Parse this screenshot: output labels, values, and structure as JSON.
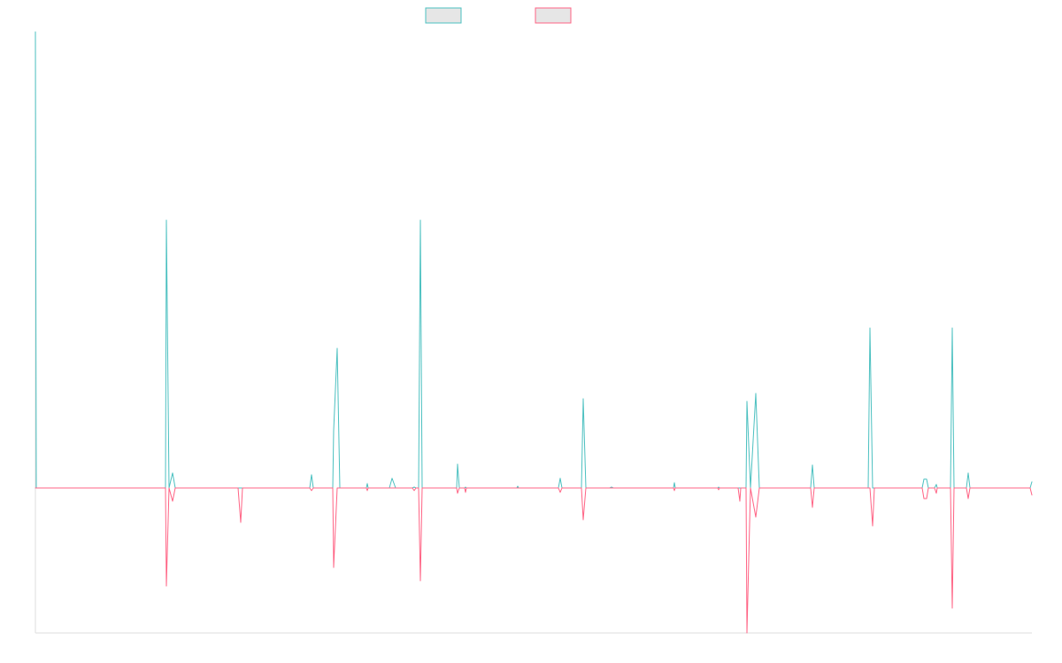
{
  "chart_data": {
    "type": "line",
    "title": "",
    "xlabel": "",
    "ylabel": "",
    "legend_position": "top-center",
    "ylim": [
      -164,
      516
    ],
    "grid": false,
    "series": [
      {
        "name": "",
        "color": "#4bc0c0",
        "fill": "#e6e6e6",
        "points": [
          [
            0,
            516
          ],
          [
            1,
            0
          ],
          [
            147,
            0
          ],
          [
            148,
            303
          ],
          [
            151,
            0
          ],
          [
            155,
            17
          ],
          [
            158,
            0
          ],
          [
            310,
            0
          ],
          [
            312,
            15
          ],
          [
            314,
            0
          ],
          [
            336,
            0
          ],
          [
            337,
            65
          ],
          [
            341,
            158
          ],
          [
            344,
            0
          ],
          [
            374,
            0
          ],
          [
            375,
            5
          ],
          [
            376,
            0
          ],
          [
            400,
            0
          ],
          [
            403,
            11
          ],
          [
            407,
            0
          ],
          [
            426,
            0
          ],
          [
            428,
            1
          ],
          [
            430,
            0
          ],
          [
            433,
            0
          ],
          [
            435,
            303
          ],
          [
            437,
            0
          ],
          [
            476,
            0
          ],
          [
            477,
            27
          ],
          [
            479,
            0
          ],
          [
            485,
            0
          ],
          [
            486,
            1
          ],
          [
            487,
            0
          ],
          [
            544,
            0
          ],
          [
            545,
            2
          ],
          [
            546,
            0
          ],
          [
            591,
            0
          ],
          [
            593,
            11
          ],
          [
            595,
            0
          ],
          [
            617,
            0
          ],
          [
            619,
            101
          ],
          [
            622,
            0
          ],
          [
            649,
            0
          ],
          [
            651,
            1
          ],
          [
            653,
            0
          ],
          [
            721,
            0
          ],
          [
            722,
            6
          ],
          [
            723,
            0
          ],
          [
            771,
            0
          ],
          [
            772,
            1
          ],
          [
            773,
            0
          ],
          [
            796,
            0
          ],
          [
            797,
            0
          ],
          [
            803,
            0
          ],
          [
            804,
            98
          ],
          [
            808,
            0
          ],
          [
            814,
            107
          ],
          [
            818,
            0
          ],
          [
            876,
            0
          ],
          [
            878,
            26
          ],
          [
            880,
            0
          ],
          [
            941,
            0
          ],
          [
            943,
            181
          ],
          [
            946,
            0
          ],
          [
            1002,
            0
          ],
          [
            1004,
            10
          ],
          [
            1007,
            10
          ],
          [
            1009,
            0
          ],
          [
            1016,
            0
          ],
          [
            1018,
            4
          ],
          [
            1019,
            0
          ],
          [
            1034,
            0
          ],
          [
            1036,
            181
          ],
          [
            1038,
            0
          ],
          [
            1052,
            0
          ],
          [
            1054,
            17
          ],
          [
            1056,
            0
          ],
          [
            1124,
            0
          ],
          [
            1126,
            7
          ]
        ]
      },
      {
        "name": "",
        "color": "#ff6384",
        "fill": "#e6e6e6",
        "points": [
          [
            0,
            0
          ],
          [
            1,
            0
          ],
          [
            147,
            0
          ],
          [
            148,
            -111
          ],
          [
            151,
            0
          ],
          [
            155,
            -15
          ],
          [
            158,
            0
          ],
          [
            229,
            0
          ],
          [
            232,
            -39
          ],
          [
            234,
            0
          ],
          [
            310,
            0
          ],
          [
            312,
            -3
          ],
          [
            314,
            0
          ],
          [
            336,
            0
          ],
          [
            337,
            -90
          ],
          [
            341,
            0
          ],
          [
            344,
            0
          ],
          [
            374,
            0
          ],
          [
            375,
            -3
          ],
          [
            376,
            0
          ],
          [
            426,
            0
          ],
          [
            428,
            -3
          ],
          [
            430,
            0
          ],
          [
            433,
            0
          ],
          [
            435,
            -105
          ],
          [
            437,
            0
          ],
          [
            476,
            0
          ],
          [
            477,
            -6
          ],
          [
            479,
            0
          ],
          [
            485,
            0
          ],
          [
            486,
            -5
          ],
          [
            487,
            0
          ],
          [
            591,
            0
          ],
          [
            593,
            -5
          ],
          [
            595,
            0
          ],
          [
            617,
            0
          ],
          [
            619,
            -36
          ],
          [
            622,
            0
          ],
          [
            721,
            0
          ],
          [
            722,
            -3
          ],
          [
            723,
            0
          ],
          [
            771,
            0
          ],
          [
            772,
            -2
          ],
          [
            773,
            0
          ],
          [
            794,
            0
          ],
          [
            796,
            -15
          ],
          [
            797,
            0
          ],
          [
            803,
            0
          ],
          [
            804,
            -164
          ],
          [
            808,
            0
          ],
          [
            814,
            -33
          ],
          [
            818,
            0
          ],
          [
            876,
            0
          ],
          [
            878,
            -22
          ],
          [
            880,
            0
          ],
          [
            941,
            0
          ],
          [
            943,
            0
          ],
          [
            946,
            -43
          ],
          [
            948,
            0
          ],
          [
            1002,
            0
          ],
          [
            1004,
            -12
          ],
          [
            1007,
            -12
          ],
          [
            1009,
            0
          ],
          [
            1016,
            0
          ],
          [
            1018,
            -6
          ],
          [
            1019,
            0
          ],
          [
            1034,
            0
          ],
          [
            1036,
            -136
          ],
          [
            1038,
            0
          ],
          [
            1052,
            0
          ],
          [
            1054,
            -12
          ],
          [
            1056,
            0
          ],
          [
            1124,
            0
          ],
          [
            1126,
            -8
          ]
        ]
      }
    ]
  }
}
